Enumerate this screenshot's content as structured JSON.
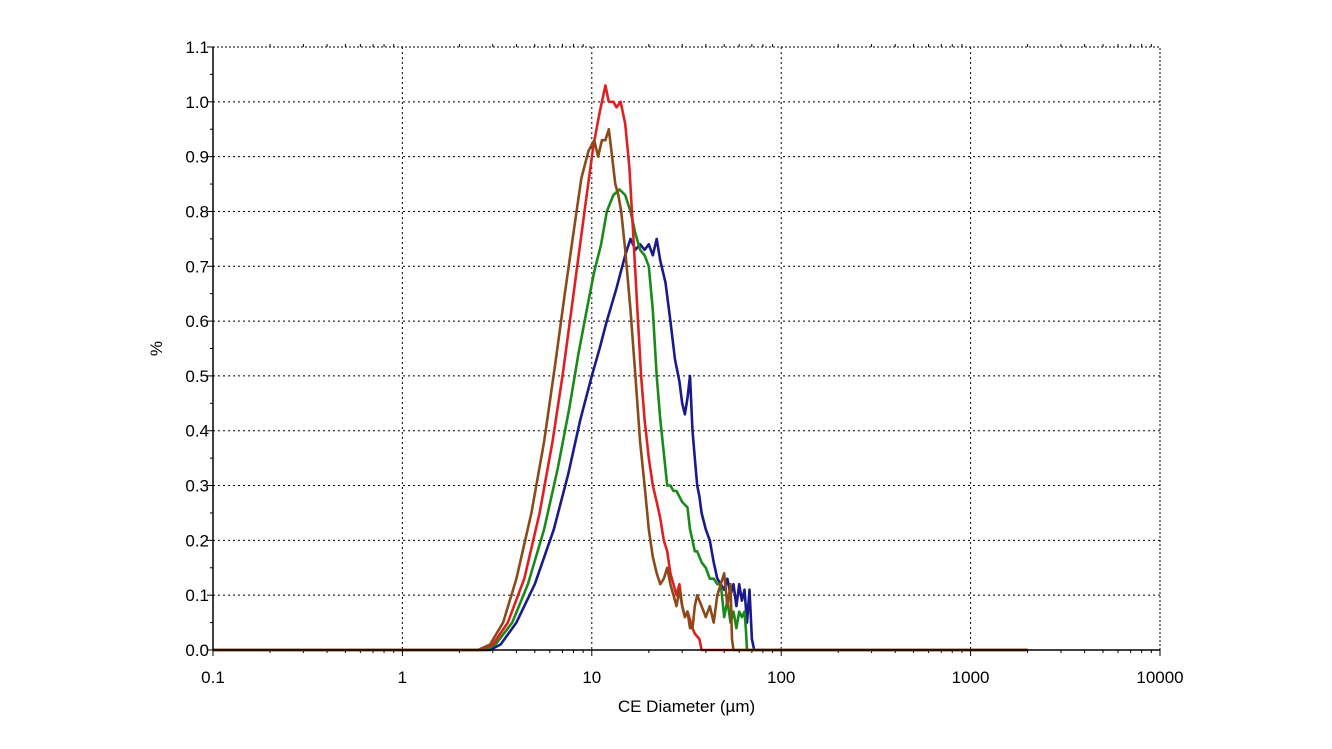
{
  "chart_data": {
    "type": "line",
    "title": "",
    "xlabel": "CE Diameter (µm)",
    "ylabel": "%",
    "x_scale": "log",
    "xlim": [
      0.1,
      10000
    ],
    "ylim": [
      0.0,
      1.1
    ],
    "grid": true,
    "x_ticks": [
      {
        "value": 0.1,
        "label": "0.1"
      },
      {
        "value": 1,
        "label": "1"
      },
      {
        "value": 10,
        "label": "10"
      },
      {
        "value": 100,
        "label": "100"
      },
      {
        "value": 1000,
        "label": "1000"
      },
      {
        "value": 10000,
        "label": "10000"
      }
    ],
    "y_ticks": [
      {
        "value": 0.0,
        "label": "0.0"
      },
      {
        "value": 0.1,
        "label": "0.1"
      },
      {
        "value": 0.2,
        "label": "0.2"
      },
      {
        "value": 0.3,
        "label": "0.3"
      },
      {
        "value": 0.4,
        "label": "0.4"
      },
      {
        "value": 0.5,
        "label": "0.5"
      },
      {
        "value": 0.6,
        "label": "0.6"
      },
      {
        "value": 0.7,
        "label": "0.7"
      },
      {
        "value": 0.8,
        "label": "0.8"
      },
      {
        "value": 0.9,
        "label": "0.9"
      },
      {
        "value": 1.0,
        "label": "1.0"
      },
      {
        "value": 1.1,
        "label": "1.1"
      }
    ],
    "series": [
      {
        "color": "#1a1a8c",
        "points": [
          [
            0.1,
            0
          ],
          [
            2.9,
            0
          ],
          [
            3.3,
            0.01
          ],
          [
            4.0,
            0.05
          ],
          [
            5.0,
            0.12
          ],
          [
            6.3,
            0.22
          ],
          [
            7.5,
            0.32
          ],
          [
            8.7,
            0.42
          ],
          [
            10,
            0.5
          ],
          [
            11,
            0.55
          ],
          [
            12,
            0.6
          ],
          [
            13.5,
            0.66
          ],
          [
            15,
            0.72
          ],
          [
            16,
            0.75
          ],
          [
            17,
            0.73
          ],
          [
            18,
            0.74
          ],
          [
            19,
            0.73
          ],
          [
            20,
            0.74
          ],
          [
            21,
            0.72
          ],
          [
            22,
            0.75
          ],
          [
            23,
            0.71
          ],
          [
            24.5,
            0.67
          ],
          [
            26,
            0.6
          ],
          [
            27.5,
            0.53
          ],
          [
            29,
            0.49
          ],
          [
            30,
            0.45
          ],
          [
            31,
            0.43
          ],
          [
            32,
            0.46
          ],
          [
            33,
            0.5
          ],
          [
            34,
            0.4
          ],
          [
            35,
            0.35
          ],
          [
            36,
            0.3
          ],
          [
            37,
            0.28
          ],
          [
            38,
            0.25
          ],
          [
            40,
            0.22
          ],
          [
            42,
            0.2
          ],
          [
            44,
            0.16
          ],
          [
            46,
            0.13
          ],
          [
            48,
            0.12
          ],
          [
            50,
            0.11
          ],
          [
            52,
            0.13
          ],
          [
            54,
            0.1
          ],
          [
            56,
            0.12
          ],
          [
            58,
            0.08
          ],
          [
            60,
            0.12
          ],
          [
            62,
            0.09
          ],
          [
            64,
            0.11
          ],
          [
            66,
            0.05
          ],
          [
            68,
            0.11
          ],
          [
            70,
            0.02
          ],
          [
            72,
            0
          ],
          [
            2000,
            0
          ]
        ]
      },
      {
        "color": "#1a8a1a",
        "points": [
          [
            0.1,
            0
          ],
          [
            2.7,
            0
          ],
          [
            3.1,
            0.01
          ],
          [
            3.8,
            0.05
          ],
          [
            4.6,
            0.12
          ],
          [
            5.6,
            0.22
          ],
          [
            6.6,
            0.33
          ],
          [
            7.6,
            0.44
          ],
          [
            8.5,
            0.54
          ],
          [
            9.4,
            0.62
          ],
          [
            10.3,
            0.69
          ],
          [
            11.2,
            0.74
          ],
          [
            12,
            0.8
          ],
          [
            13,
            0.83
          ],
          [
            14,
            0.84
          ],
          [
            15,
            0.83
          ],
          [
            16,
            0.8
          ],
          [
            17,
            0.76
          ],
          [
            18,
            0.73
          ],
          [
            19,
            0.72
          ],
          [
            20,
            0.7
          ],
          [
            21,
            0.62
          ],
          [
            22,
            0.5
          ],
          [
            23,
            0.42
          ],
          [
            24,
            0.36
          ],
          [
            25,
            0.3
          ],
          [
            26,
            0.3
          ],
          [
            27,
            0.29
          ],
          [
            28,
            0.29
          ],
          [
            30,
            0.27
          ],
          [
            32,
            0.26
          ],
          [
            33,
            0.22
          ],
          [
            34,
            0.2
          ],
          [
            35,
            0.18
          ],
          [
            36,
            0.18
          ],
          [
            38,
            0.16
          ],
          [
            40,
            0.15
          ],
          [
            42,
            0.13
          ],
          [
            44,
            0.13
          ],
          [
            46,
            0.12
          ],
          [
            48,
            0.12
          ],
          [
            50,
            0.06
          ],
          [
            52,
            0.09
          ],
          [
            54,
            0.05
          ],
          [
            56,
            0.07
          ],
          [
            58,
            0.04
          ],
          [
            60,
            0.07
          ],
          [
            62,
            0.06
          ],
          [
            64,
            0.07
          ],
          [
            65,
            0.04
          ],
          [
            66,
            0
          ],
          [
            2000,
            0
          ]
        ]
      },
      {
        "color": "#e02020",
        "points": [
          [
            0.1,
            0
          ],
          [
            2.6,
            0
          ],
          [
            3.0,
            0.01
          ],
          [
            3.6,
            0.05
          ],
          [
            4.4,
            0.13
          ],
          [
            5.3,
            0.25
          ],
          [
            6.2,
            0.38
          ],
          [
            7.0,
            0.5
          ],
          [
            7.8,
            0.62
          ],
          [
            8.6,
            0.73
          ],
          [
            9.4,
            0.83
          ],
          [
            10.2,
            0.92
          ],
          [
            11,
            0.98
          ],
          [
            11.8,
            1.03
          ],
          [
            12.3,
            1.0
          ],
          [
            13,
            1.0
          ],
          [
            13.5,
            0.99
          ],
          [
            14.2,
            1.0
          ],
          [
            15,
            0.96
          ],
          [
            15.8,
            0.88
          ],
          [
            16.6,
            0.75
          ],
          [
            17.4,
            0.62
          ],
          [
            18.2,
            0.5
          ],
          [
            19,
            0.42
          ],
          [
            20,
            0.35
          ],
          [
            21,
            0.3
          ],
          [
            22,
            0.27
          ],
          [
            23,
            0.24
          ],
          [
            24,
            0.2
          ],
          [
            25,
            0.18
          ],
          [
            26,
            0.14
          ],
          [
            28,
            0.1
          ],
          [
            29,
            0.12
          ],
          [
            30,
            0.08
          ],
          [
            31,
            0.06
          ],
          [
            32,
            0.07
          ],
          [
            34,
            0.04
          ],
          [
            35,
            0.03
          ],
          [
            37,
            0.02
          ],
          [
            38,
            0
          ],
          [
            2000,
            0
          ]
        ]
      },
      {
        "color": "#8b4a1a",
        "points": [
          [
            0.1,
            0
          ],
          [
            2.5,
            0
          ],
          [
            2.9,
            0.01
          ],
          [
            3.4,
            0.05
          ],
          [
            4.0,
            0.13
          ],
          [
            4.8,
            0.25
          ],
          [
            5.6,
            0.38
          ],
          [
            6.4,
            0.52
          ],
          [
            7.2,
            0.65
          ],
          [
            8.0,
            0.76
          ],
          [
            8.8,
            0.86
          ],
          [
            9.6,
            0.91
          ],
          [
            10.3,
            0.93
          ],
          [
            10.8,
            0.9
          ],
          [
            11.3,
            0.93
          ],
          [
            11.8,
            0.93
          ],
          [
            12.3,
            0.95
          ],
          [
            12.8,
            0.9
          ],
          [
            13.3,
            0.85
          ],
          [
            13.8,
            0.83
          ],
          [
            14.3,
            0.8
          ],
          [
            15,
            0.73
          ],
          [
            16,
            0.62
          ],
          [
            17,
            0.5
          ],
          [
            18,
            0.38
          ],
          [
            19,
            0.3
          ],
          [
            20,
            0.22
          ],
          [
            21,
            0.17
          ],
          [
            22,
            0.14
          ],
          [
            23,
            0.12
          ],
          [
            24,
            0.13
          ],
          [
            25,
            0.15
          ],
          [
            26,
            0.12
          ],
          [
            27,
            0.1
          ],
          [
            28,
            0.08
          ],
          [
            29,
            0.11
          ],
          [
            30,
            0.08
          ],
          [
            31,
            0.06
          ],
          [
            32,
            0.07
          ],
          [
            33,
            0.04
          ],
          [
            34,
            0.04
          ],
          [
            35,
            0.08
          ],
          [
            36,
            0.1
          ],
          [
            38,
            0.08
          ],
          [
            40,
            0.06
          ],
          [
            42,
            0.08
          ],
          [
            44,
            0.05
          ],
          [
            46,
            0.1
          ],
          [
            48,
            0.12
          ],
          [
            50,
            0.14
          ],
          [
            52,
            0.08
          ],
          [
            54,
            0.12
          ],
          [
            55,
            0.02
          ],
          [
            56,
            0
          ],
          [
            2000,
            0
          ]
        ]
      }
    ]
  }
}
